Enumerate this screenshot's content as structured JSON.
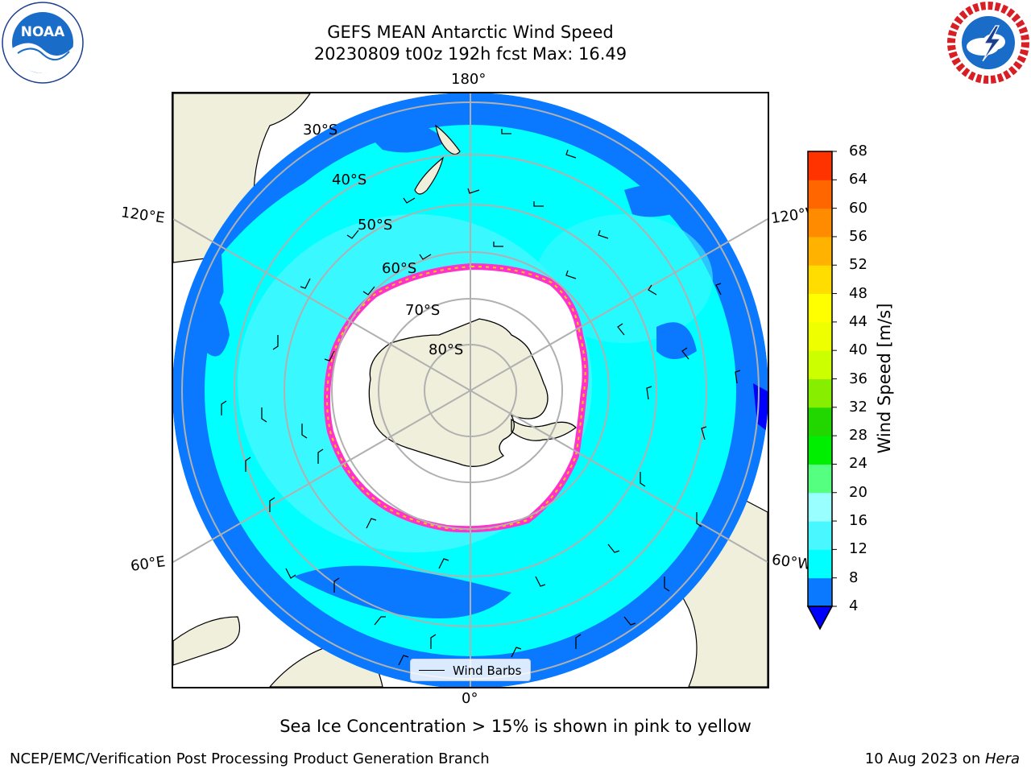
{
  "title": {
    "line1": "GEFS MEAN Antarctic Wind Speed",
    "line2": "20230809 t00z 192h fcst   Max: 16.49"
  },
  "logos": {
    "left": {
      "icon": "noaa-logo",
      "text": "NOAA"
    },
    "right": {
      "icon": "nws-logo"
    }
  },
  "map": {
    "projection": "south-polar-stereographic",
    "longitude_labels": {
      "top": "180°",
      "bottom": "0°",
      "upper_left": "120°E",
      "upper_right": "120°W",
      "lower_left": "60°E",
      "lower_right": "60°W"
    },
    "latitude_labels": [
      "30°S",
      "40°S",
      "50°S",
      "60°S",
      "70°S",
      "80°S"
    ],
    "colors": {
      "land": "#efefdb",
      "coast": "#000000",
      "grid": "#b0b0b0",
      "wind_4_8": "#0a78ff",
      "wind_8_12": "#00ffff",
      "wind_12_16": "#3ff7ff",
      "sea_ice_edge": "#ff33cc",
      "sea_ice_inner": "#ffcc00"
    }
  },
  "colorbar": {
    "label": "Wind Speed [m/s]",
    "ticks": [
      "4",
      "8",
      "12",
      "16",
      "20",
      "24",
      "28",
      "32",
      "36",
      "40",
      "44",
      "48",
      "52",
      "56",
      "60",
      "64",
      "68"
    ],
    "colors": [
      "#0a78ff",
      "#00ffff",
      "#48f7ff",
      "#99ffff",
      "#55ff7f",
      "#00ee00",
      "#22d600",
      "#88ee00",
      "#ccff00",
      "#eeff00",
      "#ffff00",
      "#ffdd00",
      "#ffb300",
      "#ff8c00",
      "#ff6600",
      "#ff3300"
    ],
    "extend_color": "#0000ff"
  },
  "legend": {
    "label": "Wind Barbs"
  },
  "footnote": "Sea Ice Concentration > 15% is shown in pink to yellow",
  "credit": "NCEP/EMC/Verification Post Processing Product Generation Branch",
  "datestamp": {
    "date": "10 Aug 2023 on ",
    "machine": "Hera"
  }
}
